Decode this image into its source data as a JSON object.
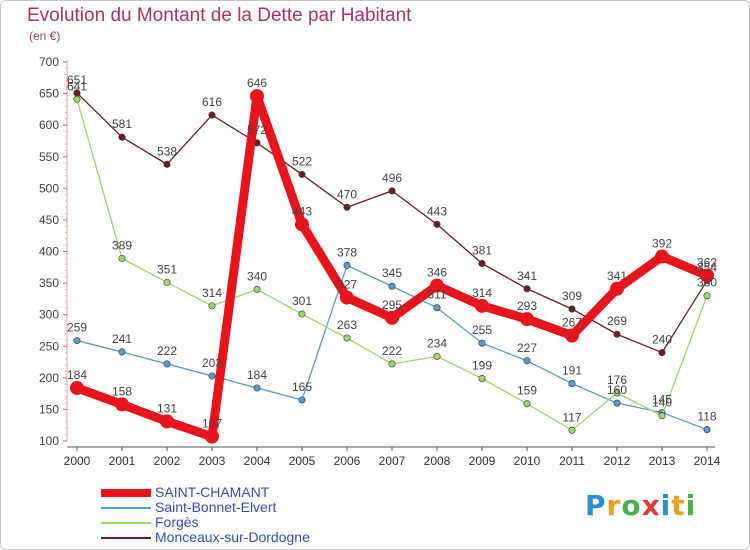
{
  "header": {
    "title": "Evolution du Montant de la Dette par Habitant",
    "subtitle": "(en €)"
  },
  "logo": {
    "text": "Proxiti",
    "colors": [
      "#2a8fd0",
      "#f0a020",
      "#4ab04a",
      "#e03a3a",
      "#2a8fd0",
      "#f0a020",
      "#4ab04a"
    ]
  },
  "chart_data": {
    "type": "line",
    "title": "Evolution du Montant de la Dette par Habitant",
    "ylabel": "(en €)",
    "xlabel": "",
    "x": [
      "2000",
      "2001",
      "2002",
      "2003",
      "2004",
      "2005",
      "2006",
      "2007",
      "2008",
      "2009",
      "2010",
      "2011",
      "2012",
      "2013",
      "2014"
    ],
    "ylim": [
      100,
      700
    ],
    "yticks": [
      100,
      150,
      200,
      250,
      300,
      350,
      400,
      450,
      500,
      550,
      600,
      650,
      700
    ],
    "grid": false,
    "legend_position": "bottom-left",
    "series": [
      {
        "name": "SAINT-CHAMANT",
        "color": "#e8141c",
        "emphasis": true,
        "values": [
          184,
          158,
          131,
          107,
          646,
          443,
          327,
          295,
          346,
          314,
          293,
          267,
          341,
          392,
          362
        ]
      },
      {
        "name": "Saint-Bonnet-Elvert",
        "color": "#5b9bd0",
        "emphasis": false,
        "values": [
          259,
          241,
          222,
          203,
          184,
          165,
          378,
          345,
          311,
          255,
          227,
          191,
          160,
          145,
          118
        ]
      },
      {
        "name": "Forgès",
        "color": "#9ad86a",
        "emphasis": false,
        "values": [
          641,
          389,
          351,
          314,
          340,
          301,
          263,
          222,
          234,
          199,
          159,
          117,
          176,
          140,
          330
        ]
      },
      {
        "name": "Monceaux-sur-Dordogne",
        "color": "#6b2020",
        "emphasis": false,
        "values": [
          651,
          581,
          538,
          616,
          572,
          522,
          470,
          496,
          443,
          381,
          341,
          309,
          269,
          240,
          354
        ]
      }
    ]
  }
}
